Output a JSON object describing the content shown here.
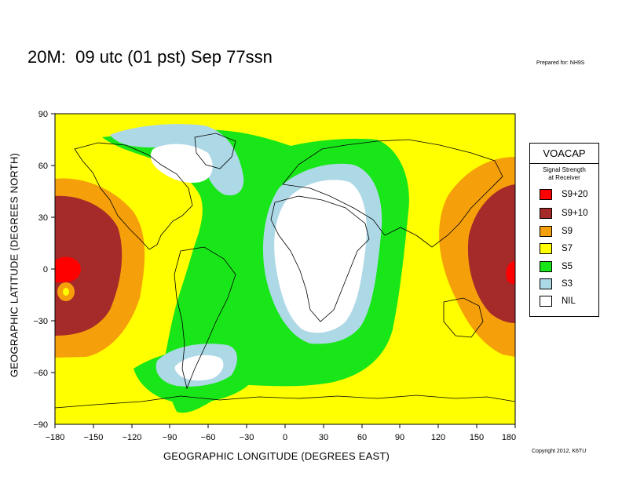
{
  "title": "20M:  09 utc (01 pst) Sep 77ssn",
  "prepared_for": "Prepared for: NH9S",
  "copyright": "Copyright 2012, K6TU",
  "axes": {
    "xlabel": "GEOGRAPHIC LONGITUDE (DEGREES EAST)",
    "ylabel": "GEOGRAPHIC LATITUDE (DEGREES NORTH)",
    "xticks": [
      "−180",
      "−150",
      "−120",
      "−90",
      "−60",
      "−30",
      "0",
      "30",
      "60",
      "90",
      "120",
      "150",
      "180"
    ],
    "yticks": [
      "90",
      "60",
      "30",
      "0",
      "−30",
      "−60",
      "−90"
    ],
    "xlim": [
      -180,
      180
    ],
    "ylim": [
      -90,
      90
    ]
  },
  "legend": {
    "title": "VOACAP",
    "subtitle": "Signal Strength\nat Receiver",
    "items": [
      {
        "label": "S9+20",
        "color": "#ff0000"
      },
      {
        "label": "S9+10",
        "color": "#a52a2a"
      },
      {
        "label": "S9",
        "color": "#f5a00a"
      },
      {
        "label": "S7",
        "color": "#ffff00"
      },
      {
        "label": "S5",
        "color": "#19e619"
      },
      {
        "label": "S3",
        "color": "#add8e6"
      },
      {
        "label": "NIL",
        "color": "#ffffff"
      }
    ]
  }
}
